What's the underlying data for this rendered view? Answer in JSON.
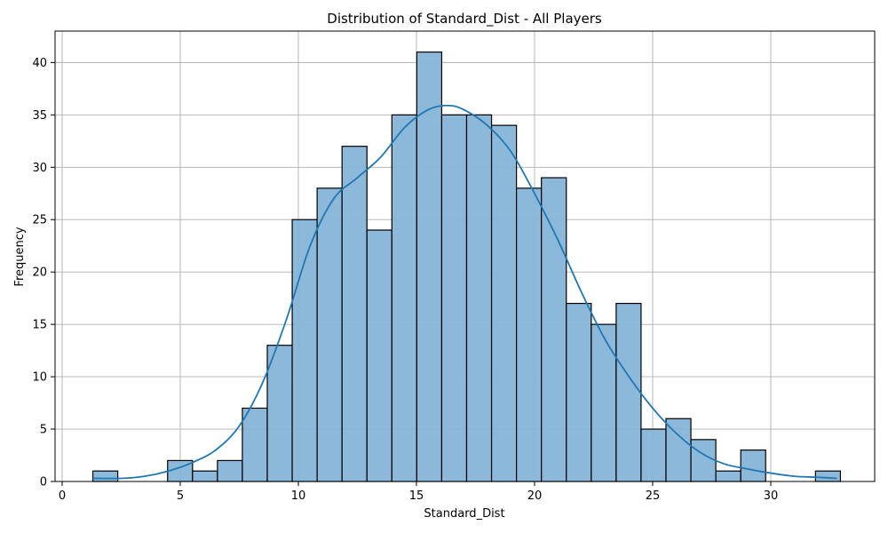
{
  "chart_data": {
    "type": "bar",
    "title": "Distribution of Standard_Dist - All Players",
    "xlabel": "Standard_Dist",
    "ylabel": "Frequency",
    "xlim": [
      -0.3,
      34.4
    ],
    "ylim": [
      0,
      43
    ],
    "xticks": [
      0,
      5,
      10,
      15,
      20,
      25,
      30
    ],
    "yticks": [
      0,
      5,
      10,
      15,
      20,
      25,
      30,
      35,
      40
    ],
    "grid": true,
    "bins": {
      "start": 1.3,
      "width": 1.055,
      "counts": [
        1,
        0,
        0,
        2,
        1,
        2,
        7,
        13,
        25,
        28,
        32,
        24,
        35,
        41,
        35,
        35,
        34,
        28,
        29,
        17,
        15,
        17,
        5,
        6,
        4,
        1,
        3,
        0,
        0,
        1
      ]
    },
    "kde": {
      "x": [
        1.3,
        2.5,
        3.5,
        4.5,
        5.5,
        6.5,
        7.5,
        8.5,
        9.5,
        10.5,
        11.5,
        12.5,
        13.5,
        14.5,
        15.5,
        16.3,
        17.0,
        18.0,
        19.0,
        20.0,
        21.0,
        22.0,
        23.0,
        24.0,
        25.0,
        26.0,
        27.0,
        28.0,
        29.0,
        30.0,
        31.0,
        32.0,
        32.8
      ],
      "y": [
        0.3,
        0.3,
        0.5,
        1.0,
        1.8,
        3.0,
        5.3,
        9.5,
        15.5,
        22.5,
        27.0,
        29.0,
        31.0,
        33.8,
        35.5,
        35.9,
        35.5,
        34.0,
        31.5,
        27.5,
        23.0,
        18.0,
        13.5,
        10.0,
        7.0,
        4.6,
        2.8,
        1.7,
        1.2,
        0.8,
        0.5,
        0.4,
        0.3
      ]
    },
    "colors": {
      "bar": "#86b4d8",
      "kde": "#1f77b4",
      "grid": "#b0b0b0"
    }
  }
}
